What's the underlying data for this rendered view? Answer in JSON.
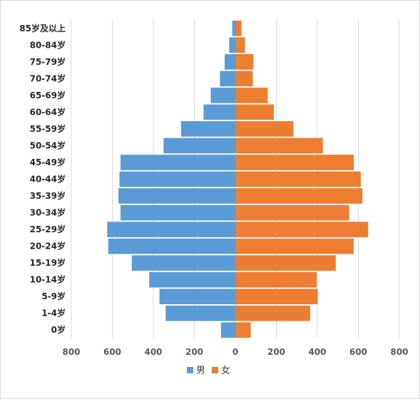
{
  "chart_data": {
    "type": "bar",
    "orientation": "horizontal",
    "layout": "population-pyramid",
    "categories": [
      "0岁",
      "1-4岁",
      "5-9岁",
      "10-14岁",
      "15-19岁",
      "20-24岁",
      "25-29岁",
      "30-34岁",
      "35-39岁",
      "40-44岁",
      "45-49岁",
      "50-54岁",
      "55-59岁",
      "60-64岁",
      "65-69岁",
      "70-74岁",
      "75-79岁",
      "80-84岁",
      "85岁及以上"
    ],
    "series": [
      {
        "name": "男",
        "color": "#5b9bd5",
        "values": [
          70,
          340,
          370,
          420,
          505,
          620,
          625,
          560,
          570,
          565,
          560,
          350,
          265,
          155,
          120,
          75,
          52,
          30,
          15
        ]
      },
      {
        "name": "女",
        "color": "#ed7d31",
        "values": [
          75,
          365,
          402,
          397,
          490,
          577,
          648,
          555,
          620,
          612,
          578,
          427,
          283,
          188,
          158,
          85,
          88,
          47,
          30
        ]
      }
    ],
    "xlim": [
      -800,
      800
    ],
    "x_ticks": [
      -800,
      -600,
      -400,
      -200,
      0,
      200,
      400,
      600,
      800
    ],
    "x_tick_labels": [
      "800",
      "600",
      "400",
      "200",
      "0",
      "200",
      "400",
      "600",
      "800"
    ],
    "grid": true,
    "legend_position": "bottom"
  }
}
